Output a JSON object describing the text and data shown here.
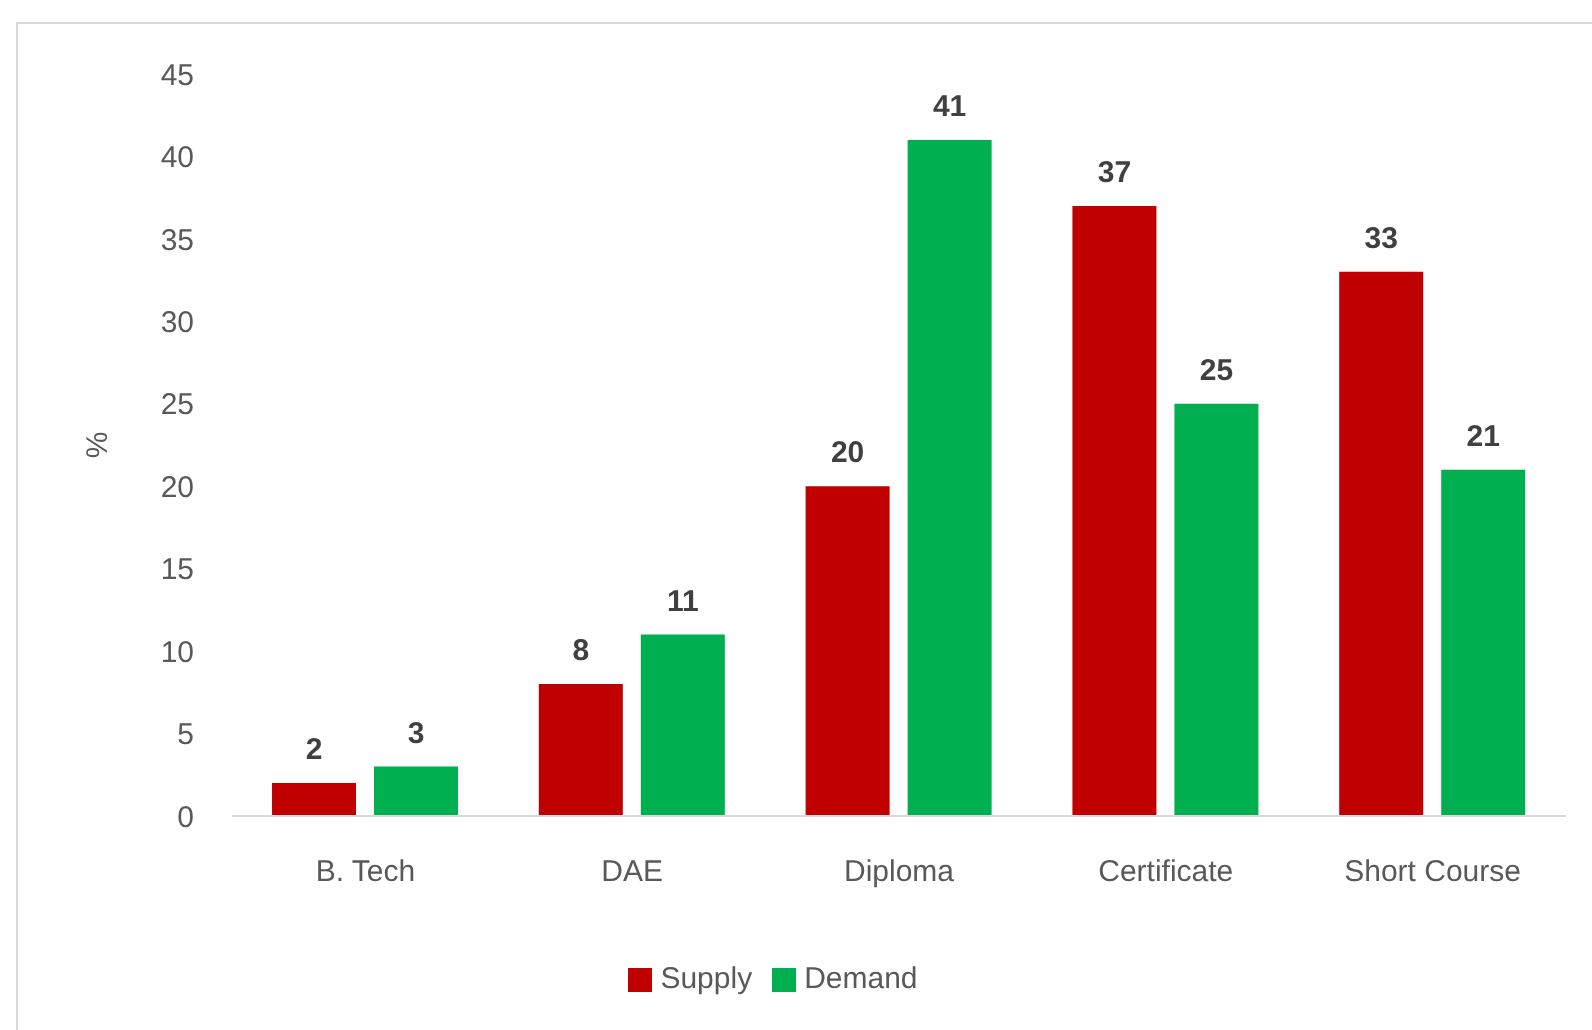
{
  "chart_data": {
    "type": "bar",
    "ylabel": "%",
    "categories": [
      "B. Tech",
      "DAE",
      "Diploma",
      "Certificate",
      "Short Course"
    ],
    "series": [
      {
        "name": "Supply",
        "color": "#c00000",
        "values": [
          2,
          8,
          20,
          37,
          33
        ]
      },
      {
        "name": "Demand",
        "color": "#00b050",
        "values": [
          3,
          11,
          41,
          25,
          21
        ]
      }
    ],
    "ylim": [
      0,
      45
    ],
    "yticks": [
      0,
      5,
      10,
      15,
      20,
      25,
      30,
      35,
      40,
      45
    ],
    "legend": "bottom",
    "data_labels": true
  }
}
